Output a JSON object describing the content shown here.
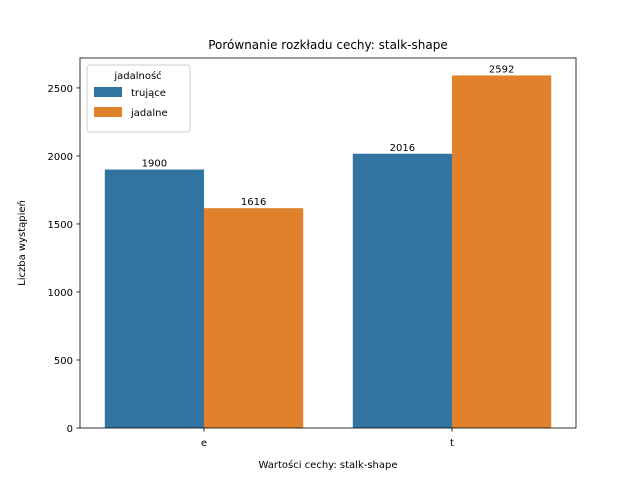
{
  "chart_data": {
    "type": "bar",
    "title": "Porównanie rozkładu cechy: stalk-shape",
    "xlabel": "Wartości cechy: stalk-shape",
    "ylabel": "Liczba wystąpień",
    "categories": [
      "e",
      "t"
    ],
    "ylim": [
      0,
      2720
    ],
    "yticks": [
      0,
      500,
      1000,
      1500,
      2000,
      2500
    ],
    "grid": false,
    "legend": {
      "title": "jadalność",
      "placement": "top-left"
    },
    "series": [
      {
        "name": "trujące",
        "color": "#3274a1",
        "values": [
          1900,
          2016
        ],
        "labels": [
          "1900",
          "2016"
        ]
      },
      {
        "name": "jadalne",
        "color": "#e1812c",
        "values": [
          1616,
          2592
        ],
        "labels": [
          "1616",
          "2592"
        ]
      }
    ]
  }
}
